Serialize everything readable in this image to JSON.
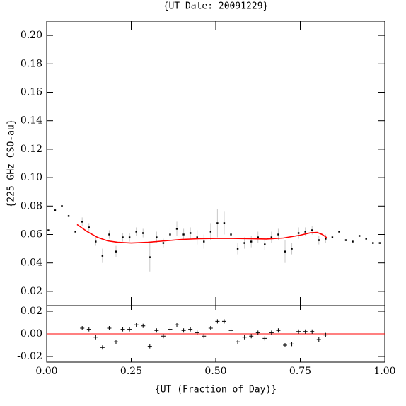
{
  "chart_data": [
    {
      "type": "scatter",
      "title": "{UT Date: 20091229}",
      "y_label": "{225 GHz CSO-au}",
      "xlim": [
        0,
        1
      ],
      "xticks": [
        0,
        0.25,
        0.5,
        0.75,
        1
      ],
      "ylim": [
        0.01,
        0.21
      ],
      "yticks": [
        {
          "value": 0.02,
          "label": "0.02"
        },
        {
          "value": 0.04,
          "label": "0.04"
        },
        {
          "value": 0.06,
          "label": "0.06"
        },
        {
          "value": 0.08,
          "label": "0.08"
        },
        {
          "value": 0.1,
          "label": "0.10"
        },
        {
          "value": 0.12,
          "label": "0.12"
        },
        {
          "value": 0.14,
          "label": "0.14"
        },
        {
          "value": 0.16,
          "label": "0.16"
        },
        {
          "value": 0.18,
          "label": "0.18"
        },
        {
          "value": 0.2,
          "label": "0.20"
        }
      ],
      "series": [
        {
          "kind": "points",
          "color": "#000000",
          "error_color": "#c8c8c8",
          "x": [
            0.005,
            0.025,
            0.045,
            0.065,
            0.085,
            0.105,
            0.125,
            0.145,
            0.165,
            0.185,
            0.205,
            0.225,
            0.245,
            0.265,
            0.285,
            0.305,
            0.325,
            0.345,
            0.365,
            0.385,
            0.405,
            0.425,
            0.445,
            0.465,
            0.485,
            0.505,
            0.525,
            0.545,
            0.565,
            0.585,
            0.605,
            0.625,
            0.645,
            0.665,
            0.685,
            0.705,
            0.725,
            0.745,
            0.765,
            0.785,
            0.805,
            0.825,
            0.845,
            0.865,
            0.885,
            0.905,
            0.925,
            0.945,
            0.965,
            0.985
          ],
          "values": [
            0.063,
            0.077,
            0.08,
            0.073,
            0.062,
            0.069,
            0.065,
            0.055,
            0.045,
            0.06,
            0.048,
            0.058,
            0.058,
            0.062,
            0.061,
            0.044,
            0.058,
            0.054,
            0.06,
            0.064,
            0.06,
            0.061,
            0.058,
            0.055,
            0.062,
            0.068,
            0.068,
            0.06,
            0.05,
            0.054,
            0.055,
            0.058,
            0.053,
            0.058,
            0.06,
            0.048,
            0.05,
            0.061,
            0.062,
            0.063,
            0.056,
            0.057,
            0.058,
            0.062,
            0.056,
            0.055,
            0.059,
            0.057,
            0.054,
            0.054
          ],
          "errors": [
            null,
            null,
            null,
            null,
            null,
            0.003,
            0.003,
            0.003,
            0.005,
            0.003,
            0.004,
            0.003,
            0.003,
            0.003,
            0.003,
            0.01,
            0.004,
            0.003,
            0.004,
            0.005,
            0.004,
            0.004,
            0.005,
            0.005,
            0.006,
            0.01,
            0.008,
            0.006,
            0.004,
            0.004,
            0.004,
            0.004,
            0.004,
            0.004,
            0.004,
            0.008,
            0.004,
            0.004,
            0.003,
            0.003,
            0.003,
            0.003,
            null,
            null,
            null,
            null,
            null,
            null,
            null,
            null
          ]
        },
        {
          "kind": "line",
          "color": "#ff0000",
          "x": [
            0.09,
            0.12,
            0.15,
            0.18,
            0.21,
            0.25,
            0.3,
            0.35,
            0.4,
            0.45,
            0.5,
            0.55,
            0.6,
            0.65,
            0.7,
            0.75,
            0.78,
            0.8,
            0.815,
            0.83
          ],
          "values": [
            0.067,
            0.062,
            0.058,
            0.0555,
            0.0545,
            0.054,
            0.0545,
            0.0555,
            0.0565,
            0.057,
            0.0572,
            0.0572,
            0.057,
            0.0568,
            0.0575,
            0.0595,
            0.0612,
            0.0615,
            0.06,
            0.0575
          ]
        }
      ]
    },
    {
      "type": "scatter",
      "x_label": "{UT (Fraction of Day)}",
      "xlim": [
        0,
        1
      ],
      "xticks": [
        {
          "value": 0,
          "label": "0.00"
        },
        {
          "value": 0.25,
          "label": "0.25"
        },
        {
          "value": 0.5,
          "label": "0.50"
        },
        {
          "value": 0.75,
          "label": "0.75"
        },
        {
          "value": 1,
          "label": "1.00"
        }
      ],
      "ylim": [
        -0.025,
        0.025
      ],
      "yticks": [
        {
          "value": -0.02,
          "label": "-0.02"
        },
        {
          "value": 0,
          "label": "0.00"
        },
        {
          "value": 0.02,
          "label": "0.02"
        }
      ],
      "zero_line_color": "#ff0000",
      "series": [
        {
          "kind": "plus",
          "color": "#000000",
          "x": [
            0.105,
            0.125,
            0.145,
            0.165,
            0.185,
            0.205,
            0.225,
            0.245,
            0.265,
            0.285,
            0.305,
            0.325,
            0.345,
            0.365,
            0.385,
            0.405,
            0.425,
            0.445,
            0.465,
            0.485,
            0.505,
            0.525,
            0.545,
            0.565,
            0.585,
            0.605,
            0.625,
            0.645,
            0.665,
            0.685,
            0.705,
            0.725,
            0.745,
            0.765,
            0.785,
            0.805,
            0.825
          ],
          "values": [
            0.005,
            0.004,
            -0.003,
            -0.012,
            0.005,
            -0.007,
            0.004,
            0.004,
            0.008,
            0.007,
            -0.011,
            0.003,
            -0.002,
            0.004,
            0.008,
            0.003,
            0.004,
            0.001,
            -0.002,
            0.005,
            0.011,
            0.011,
            0.003,
            -0.007,
            -0.003,
            -0.002,
            0.001,
            -0.004,
            0.001,
            0.003,
            -0.01,
            -0.009,
            0.002,
            0.002,
            0.002,
            -0.005,
            -0.001
          ]
        }
      ]
    }
  ]
}
